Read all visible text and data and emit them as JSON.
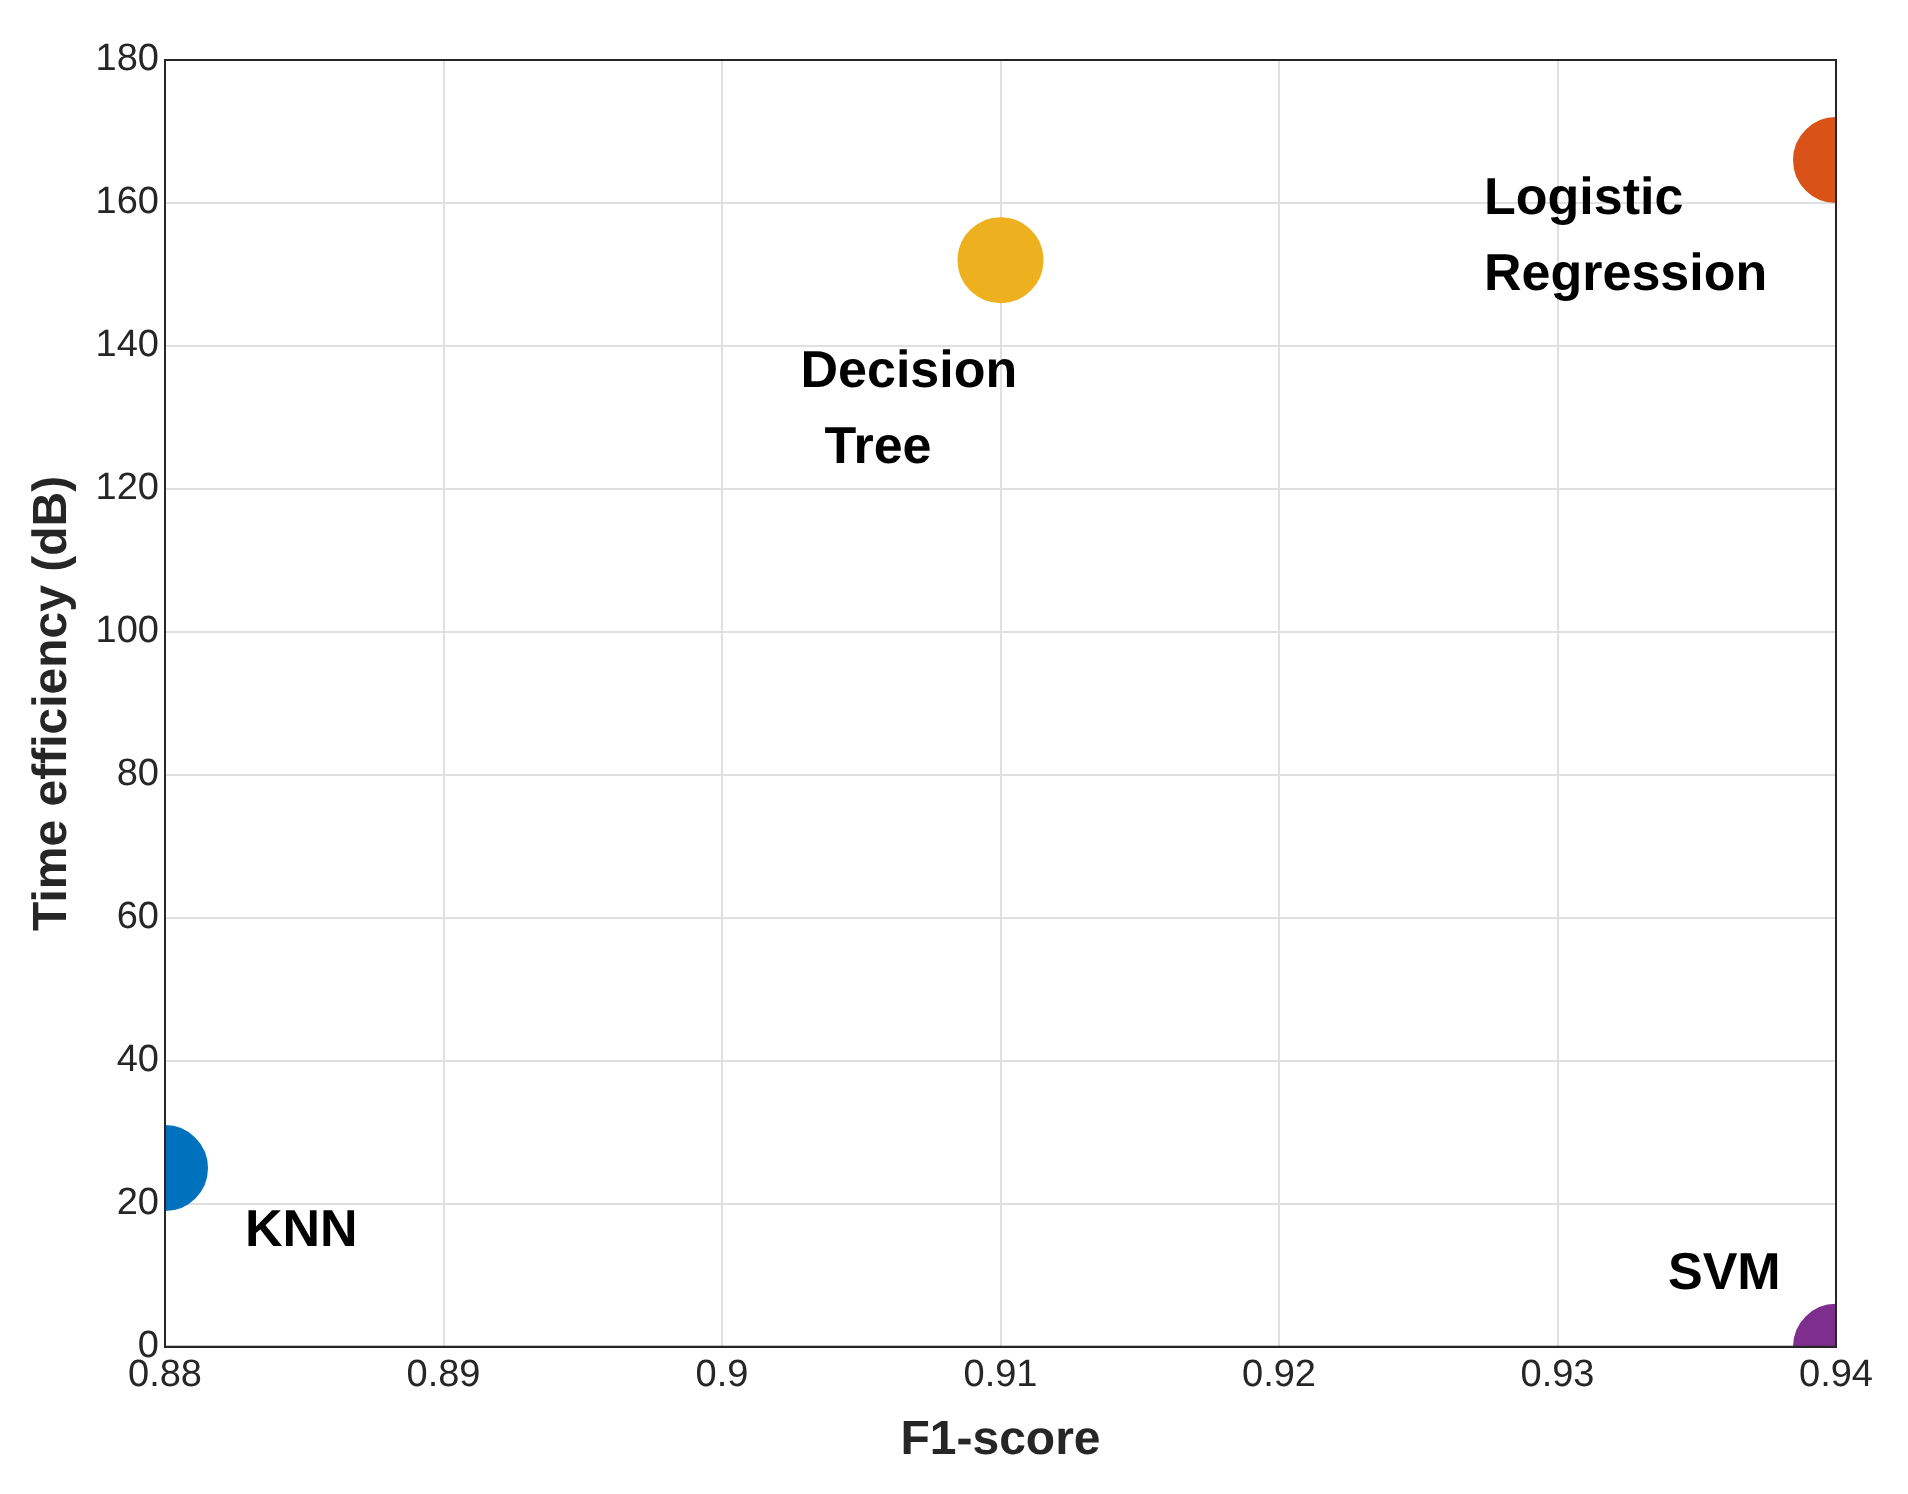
{
  "chart_data": {
    "type": "scatter",
    "xlabel": "F1-score",
    "ylabel": "Time efficiency (dB)",
    "xlim": [
      0.88,
      0.94
    ],
    "xticks": [
      0.88,
      0.89,
      0.9,
      0.91,
      0.92,
      0.93,
      0.94
    ],
    "ylim": [
      0,
      180
    ],
    "yticks": [
      0,
      20,
      40,
      60,
      80,
      100,
      120,
      140,
      160,
      180
    ],
    "grid": true,
    "marker": "circle",
    "series": [
      {
        "name": "KNN",
        "color": "#0072bd",
        "x": [
          0.88
        ],
        "values": [
          25
        ]
      },
      {
        "name": "Decision Tree",
        "color": "#edb120",
        "x": [
          0.91
        ],
        "values": [
          152
        ]
      },
      {
        "name": "Logistic Regression",
        "color": "#d95319",
        "x": [
          0.94
        ],
        "values": [
          166
        ]
      },
      {
        "name": "SVM",
        "color": "#7e2f8e",
        "x": [
          0.94
        ],
        "values": [
          0
        ]
      }
    ]
  }
}
